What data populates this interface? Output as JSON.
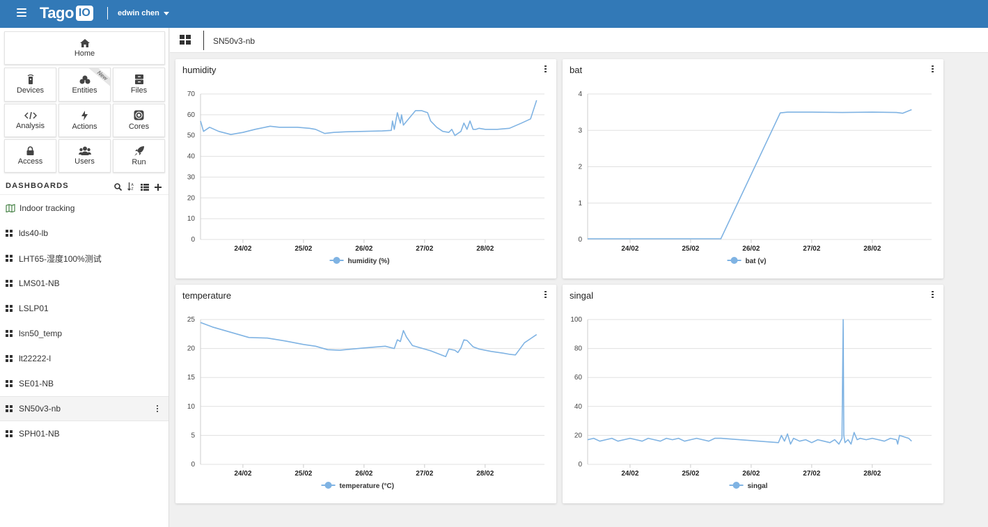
{
  "app": {
    "logo_text": "Tago",
    "logo_box": "IO",
    "user_name": "edwin chen"
  },
  "colors": {
    "topbar": "#3279b7",
    "series": "#7fb3e3",
    "grid": "#e0e0e0"
  },
  "nav": {
    "home": "Home",
    "items": [
      {
        "label": "Devices",
        "icon": "device-icon"
      },
      {
        "label": "Entities",
        "icon": "entities-icon",
        "badge": "New"
      },
      {
        "label": "Files",
        "icon": "files-icon"
      },
      {
        "label": "Analysis",
        "icon": "code-icon"
      },
      {
        "label": "Actions",
        "icon": "bolt-icon"
      },
      {
        "label": "Cores",
        "icon": "cores-icon"
      },
      {
        "label": "Access",
        "icon": "lock-icon"
      },
      {
        "label": "Users",
        "icon": "users-icon"
      },
      {
        "label": "Run",
        "icon": "rocket-icon"
      }
    ]
  },
  "dashboards": {
    "title": "DASHBOARDS",
    "items": [
      {
        "label": "Indoor tracking",
        "icon": "map-icon"
      },
      {
        "label": "lds40-lb"
      },
      {
        "label": "LHT65-湿度100%测试"
      },
      {
        "label": "LMS01-NB"
      },
      {
        "label": "LSLP01"
      },
      {
        "label": "lsn50_temp"
      },
      {
        "label": "lt22222-l"
      },
      {
        "label": "SE01-NB"
      },
      {
        "label": "SN50v3-nb",
        "active": true
      },
      {
        "label": "SPH01-NB"
      }
    ]
  },
  "main": {
    "dashboard_name": "SN50v3-nb"
  },
  "chart_data": [
    {
      "type": "line",
      "title": "humidity",
      "series": [
        {
          "name": "humidity (%)",
          "x": [
            23.3,
            23.35,
            23.45,
            23.6,
            23.8,
            24.0,
            24.2,
            24.45,
            24.6,
            24.7,
            24.9,
            25.1,
            25.2,
            25.35,
            25.5,
            25.7,
            26.0,
            26.3,
            26.45,
            26.47,
            26.5,
            26.55,
            26.6,
            26.62,
            26.65,
            26.75,
            26.85,
            26.95,
            27.05,
            27.1,
            27.2,
            27.3,
            27.4,
            27.45,
            27.5,
            27.55,
            27.6,
            27.65,
            27.7,
            27.75,
            27.8,
            27.85,
            27.9,
            28.0,
            28.2,
            28.4,
            28.6,
            28.75,
            28.85
          ],
          "y": [
            57,
            52,
            54,
            52,
            50.5,
            51.5,
            53,
            54.5,
            54,
            54,
            54,
            53.5,
            53,
            51,
            51.5,
            51.8,
            52,
            52.2,
            52.5,
            57,
            53,
            61,
            56,
            60,
            55,
            58.5,
            62,
            62,
            61,
            57,
            54,
            52,
            51.5,
            53,
            50,
            51,
            52,
            56,
            53,
            57,
            53,
            53,
            53.5,
            53,
            53,
            53.5,
            56,
            58,
            67
          ]
        }
      ],
      "xticks": [
        24,
        25,
        26,
        27,
        28
      ],
      "xticklabels": [
        "24/02",
        "25/02",
        "26/02",
        "27/02",
        "28/02"
      ],
      "xlim": [
        23.3,
        28.98
      ],
      "ylim": [
        0,
        70
      ],
      "yticks": [
        0,
        10,
        20,
        30,
        40,
        50,
        60,
        70
      ]
    },
    {
      "type": "line",
      "title": "bat",
      "series": [
        {
          "name": "bat (v)",
          "x": [
            23.3,
            24.0,
            24.5,
            25.0,
            25.5,
            26.48,
            26.6,
            27.0,
            27.5,
            28.0,
            28.4,
            28.5,
            28.65
          ],
          "y": [
            0.02,
            0.02,
            0.02,
            0.02,
            0.02,
            3.48,
            3.5,
            3.5,
            3.49,
            3.5,
            3.49,
            3.47,
            3.57
          ]
        }
      ],
      "xticks": [
        24,
        25,
        26,
        27,
        28
      ],
      "xticklabels": [
        "24/02",
        "25/02",
        "26/02",
        "27/02",
        "28/02"
      ],
      "xlim": [
        23.3,
        28.98
      ],
      "ylim": [
        0,
        4
      ],
      "yticks": [
        0,
        1,
        2,
        3,
        4
      ]
    },
    {
      "type": "line",
      "title": "temperature",
      "series": [
        {
          "name": "temperature (°C)",
          "x": [
            23.3,
            23.5,
            23.8,
            24.1,
            24.4,
            24.7,
            25.0,
            25.2,
            25.4,
            25.6,
            26.0,
            26.35,
            26.5,
            26.55,
            26.6,
            26.65,
            26.7,
            26.8,
            26.9,
            27.1,
            27.3,
            27.35,
            27.4,
            27.5,
            27.55,
            27.6,
            27.65,
            27.7,
            27.8,
            27.9,
            28.1,
            28.3,
            28.4,
            28.5,
            28.65,
            28.85
          ],
          "y": [
            24.5,
            23.7,
            22.8,
            21.9,
            21.8,
            21.3,
            20.7,
            20.4,
            19.8,
            19.7,
            20.1,
            20.4,
            20.0,
            21.5,
            21.2,
            23.1,
            22.0,
            20.5,
            20.2,
            19.6,
            18.8,
            18.6,
            19.9,
            19.7,
            19.3,
            20.1,
            21.5,
            21.4,
            20.3,
            19.9,
            19.5,
            19.2,
            19.0,
            18.9,
            21.0,
            22.4
          ]
        }
      ],
      "xticks": [
        24,
        25,
        26,
        27,
        28
      ],
      "xticklabels": [
        "24/02",
        "25/02",
        "26/02",
        "27/02",
        "28/02"
      ],
      "xlim": [
        23.3,
        28.98
      ],
      "ylim": [
        0,
        25
      ],
      "yticks": [
        0,
        5,
        10,
        15,
        20,
        25
      ]
    },
    {
      "type": "line",
      "title": "singal",
      "series": [
        {
          "name": "singal",
          "x": [
            23.3,
            23.4,
            23.5,
            23.6,
            23.7,
            23.8,
            23.9,
            24.0,
            24.1,
            24.2,
            24.3,
            24.4,
            24.5,
            24.6,
            24.7,
            24.8,
            24.9,
            25.0,
            25.1,
            25.2,
            25.3,
            25.4,
            25.5,
            26.45,
            26.5,
            26.55,
            26.6,
            26.65,
            26.7,
            26.8,
            26.9,
            27.0,
            27.1,
            27.2,
            27.3,
            27.38,
            27.45,
            27.5,
            27.52,
            27.53,
            27.55,
            27.6,
            27.65,
            27.7,
            27.75,
            27.8,
            27.9,
            28.0,
            28.1,
            28.2,
            28.3,
            28.4,
            28.42,
            28.45,
            28.6,
            28.65
          ],
          "y": [
            17,
            18,
            16,
            17,
            18,
            16,
            17,
            18,
            17,
            16,
            18,
            17,
            16,
            18,
            17,
            18,
            16,
            17,
            18,
            17,
            16,
            18,
            18,
            15,
            20,
            16,
            21,
            14,
            18,
            16,
            17,
            15,
            17,
            16,
            15,
            17,
            14,
            18,
            100,
            20,
            15,
            17,
            14,
            22,
            17,
            18,
            17,
            18,
            17,
            16,
            18,
            17,
            14,
            20,
            18,
            16
          ]
        }
      ],
      "xticks": [
        24,
        25,
        26,
        27,
        28
      ],
      "xticklabels": [
        "24/02",
        "25/02",
        "26/02",
        "27/02",
        "28/02"
      ],
      "xlim": [
        23.3,
        28.98
      ],
      "ylim": [
        0,
        100
      ],
      "yticks": [
        0,
        20,
        40,
        60,
        80,
        100
      ]
    }
  ]
}
